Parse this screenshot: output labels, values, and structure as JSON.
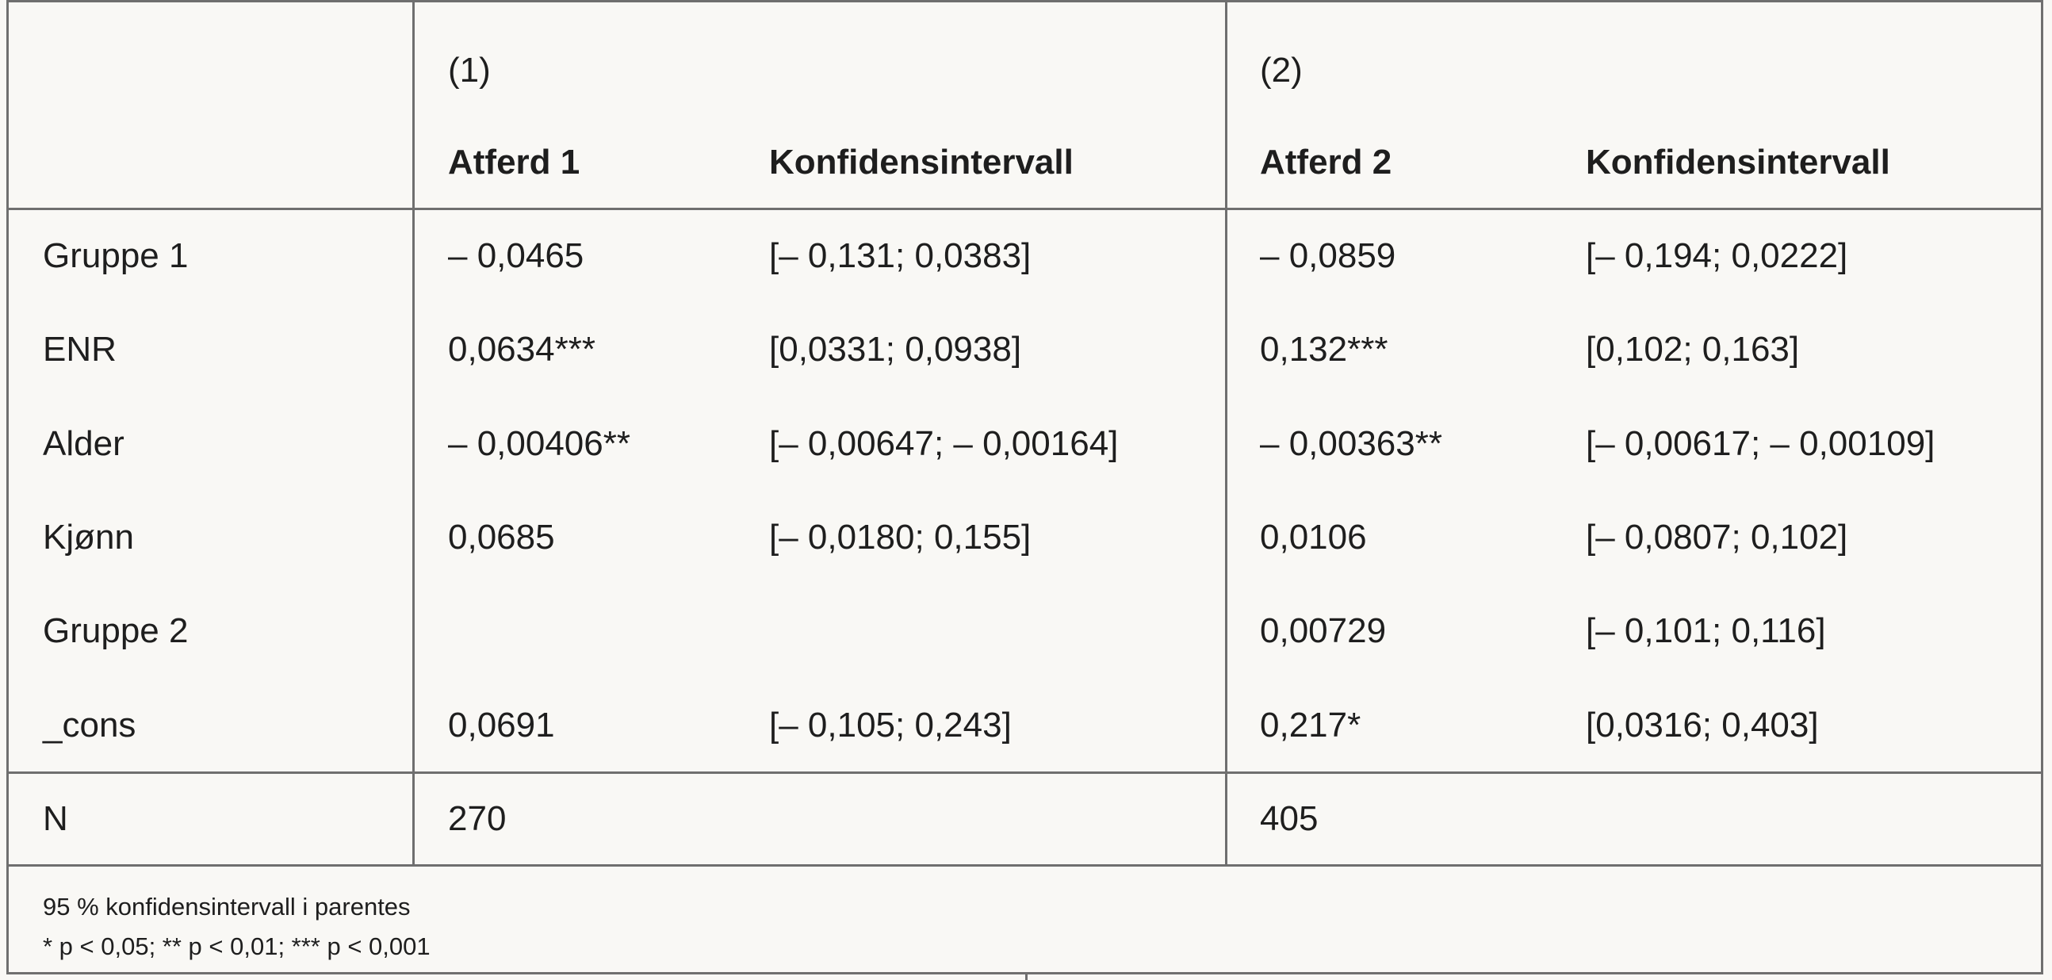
{
  "table": {
    "header": {
      "model1": "(1)",
      "model2": "(2)",
      "col_atferd1": "Atferd 1",
      "col_ci1": "Konfidensintervall",
      "col_atferd2": "Atferd 2",
      "col_ci2": "Konfidensintervall"
    },
    "rows": [
      {
        "label": "Gruppe 1",
        "a1": "– 0,0465",
        "ci1": "[– 0,131; 0,0383]",
        "a2": "– 0,0859",
        "ci2": "[– 0,194; 0,0222]"
      },
      {
        "label": "ENR",
        "a1": "0,0634***",
        "ci1": "[0,0331; 0,0938]",
        "a2": "0,132***",
        "ci2": "[0,102; 0,163]"
      },
      {
        "label": "Alder",
        "a1": "– 0,00406**",
        "ci1": "[– 0,00647; – 0,00164]",
        "a2": "– 0,00363**",
        "ci2": "[– 0,00617; – 0,00109]"
      },
      {
        "label": "Kjønn",
        "a1": "0,0685",
        "ci1": "[– 0,0180; 0,155]",
        "a2": "0,0106",
        "ci2": "[– 0,0807; 0,102]"
      },
      {
        "label": "Gruppe 2",
        "a1": "",
        "ci1": "",
        "a2": "0,00729",
        "ci2": "[– 0,101; 0,116]"
      },
      {
        "label": "_cons",
        "a1": "0,0691",
        "ci1": "[– 0,105; 0,243]",
        "a2": "0,217*",
        "ci2": "[0,0316; 0,403]"
      }
    ],
    "n_row": {
      "label": "N",
      "n1": "270",
      "n2": "405"
    },
    "notes": [
      "95 % konfidensintervall i parentes",
      "* p < 0,05; ** p < 0,01; *** p < 0,001"
    ]
  }
}
